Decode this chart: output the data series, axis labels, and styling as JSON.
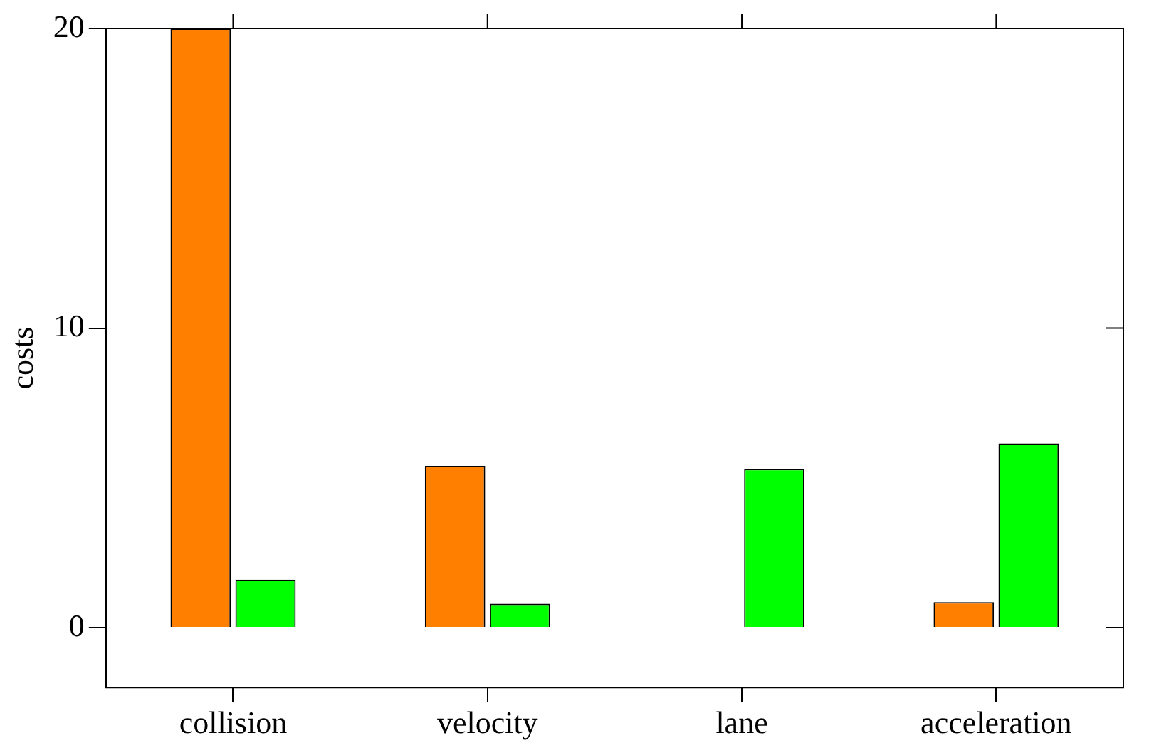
{
  "chart_data": {
    "type": "bar",
    "ylabel": "costs",
    "categories": [
      "collision",
      "velocity",
      "lane",
      "acceleration"
    ],
    "series": [
      {
        "color": "#ff8000",
        "values": [
          20,
          5.4,
          0,
          0.85
        ]
      },
      {
        "color": "#00ff00",
        "values": [
          1.6,
          0.8,
          5.3,
          6.15
        ]
      }
    ],
    "ylim": [
      -2,
      20
    ],
    "yticks": [
      0,
      10,
      20
    ],
    "grid": false,
    "legend": false
  }
}
